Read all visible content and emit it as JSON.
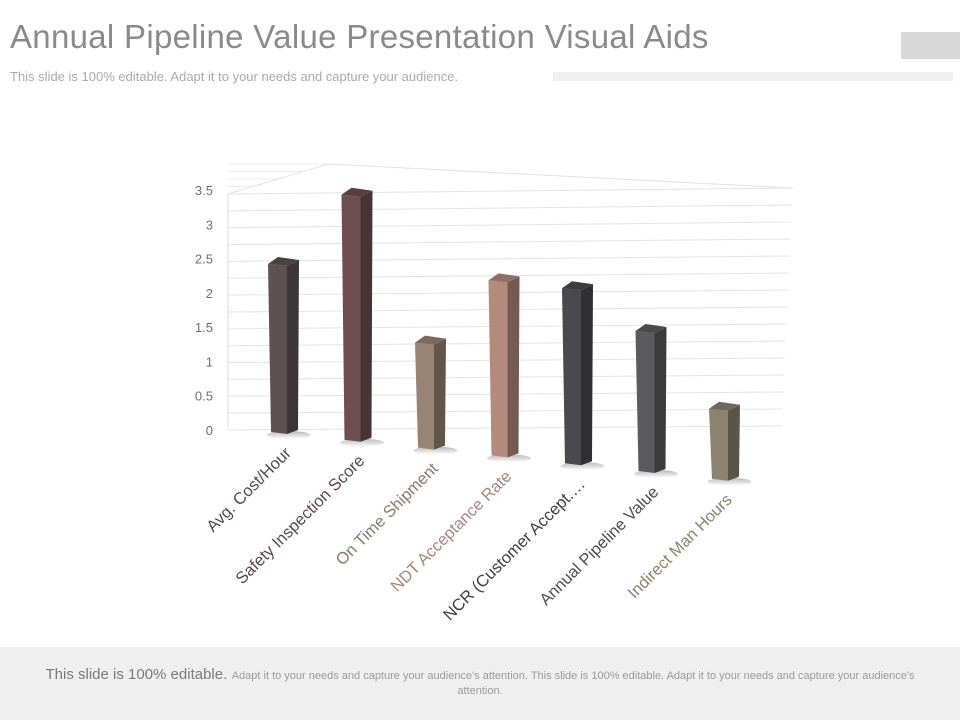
{
  "header": {
    "title": "Annual Pipeline Value Presentation Visual Aids",
    "subtitle": "This slide is 100% editable. Adapt it to your needs and capture your audience."
  },
  "footer": {
    "lead": "This slide is 100% editable.",
    "body": "Adapt it to your needs and capture your audience's attention. This slide is 100% editable. Adapt it to your needs and capture your audience's attention."
  },
  "chart_data": {
    "type": "bar",
    "categories": [
      "Avg. Cost/Hour",
      "Safety Inspection Score",
      "On Time Shipment",
      "NDT Acceptance Rate",
      "NCR (Customer Accept.…",
      "Annual Pipeline Value",
      "Indirect Man Hours"
    ],
    "values": [
      2.4,
      3.5,
      1.5,
      2.5,
      2.5,
      2.0,
      1.0
    ],
    "colors": [
      "#5e5154",
      "#6e4e52",
      "#978474",
      "#b38a7d",
      "#4a494d",
      "#5b5b5d",
      "#8c8270"
    ],
    "label_colors": [
      "#544a4d",
      "#5e464a",
      "#8c7a6a",
      "#a9857a",
      "#3f3e42",
      "#4e4e50",
      "#8c8270"
    ],
    "y_ticks": [
      "0",
      "0.5",
      "1",
      "1.5",
      "2",
      "2.5",
      "3",
      "3.5"
    ],
    "ylim": [
      0,
      3.5
    ],
    "grid": true,
    "title": "",
    "xlabel": "",
    "ylabel": ""
  }
}
